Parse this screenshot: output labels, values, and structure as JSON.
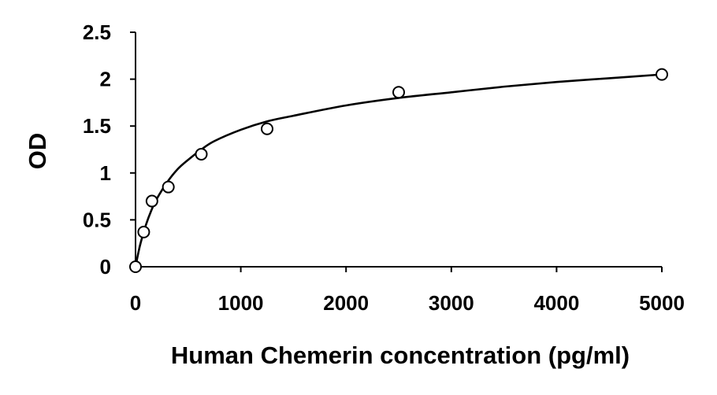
{
  "chart_data": {
    "type": "scatter",
    "title": "",
    "xlabel": "Human Chemerin concentration (pg/ml)",
    "ylabel": "OD",
    "xlim": [
      0,
      5000
    ],
    "ylim": [
      0,
      2.5
    ],
    "x_ticks": [
      0,
      1000,
      2000,
      3000,
      4000,
      5000
    ],
    "y_ticks": [
      0,
      0.5,
      1,
      1.5,
      2,
      2.5
    ],
    "x_tick_labels": [
      "0",
      "1000",
      "2000",
      "3000",
      "4000",
      "5000"
    ],
    "y_tick_labels": [
      "0",
      "0.5",
      "1",
      "1.5",
      "2",
      "2.5"
    ],
    "grid": false,
    "legend": "none",
    "series": [
      {
        "marker": "open-circle",
        "x": [
          0,
          78,
          156,
          312,
          625,
          1250,
          2500,
          5000
        ],
        "y": [
          0.0,
          0.37,
          0.7,
          0.85,
          1.2,
          1.47,
          1.86,
          2.05
        ]
      }
    ],
    "fit_line": {
      "style": "solid",
      "x": [
        0,
        25,
        50,
        100,
        150,
        200,
        300,
        400,
        500,
        625,
        750,
        1000,
        1250,
        1500,
        2000,
        2500,
        3000,
        3500,
        4000,
        4500,
        5000
      ],
      "y": [
        0.0,
        0.14,
        0.26,
        0.45,
        0.6,
        0.72,
        0.9,
        1.04,
        1.14,
        1.25,
        1.34,
        1.46,
        1.55,
        1.61,
        1.72,
        1.8,
        1.86,
        1.92,
        1.97,
        2.01,
        2.05
      ]
    }
  }
}
